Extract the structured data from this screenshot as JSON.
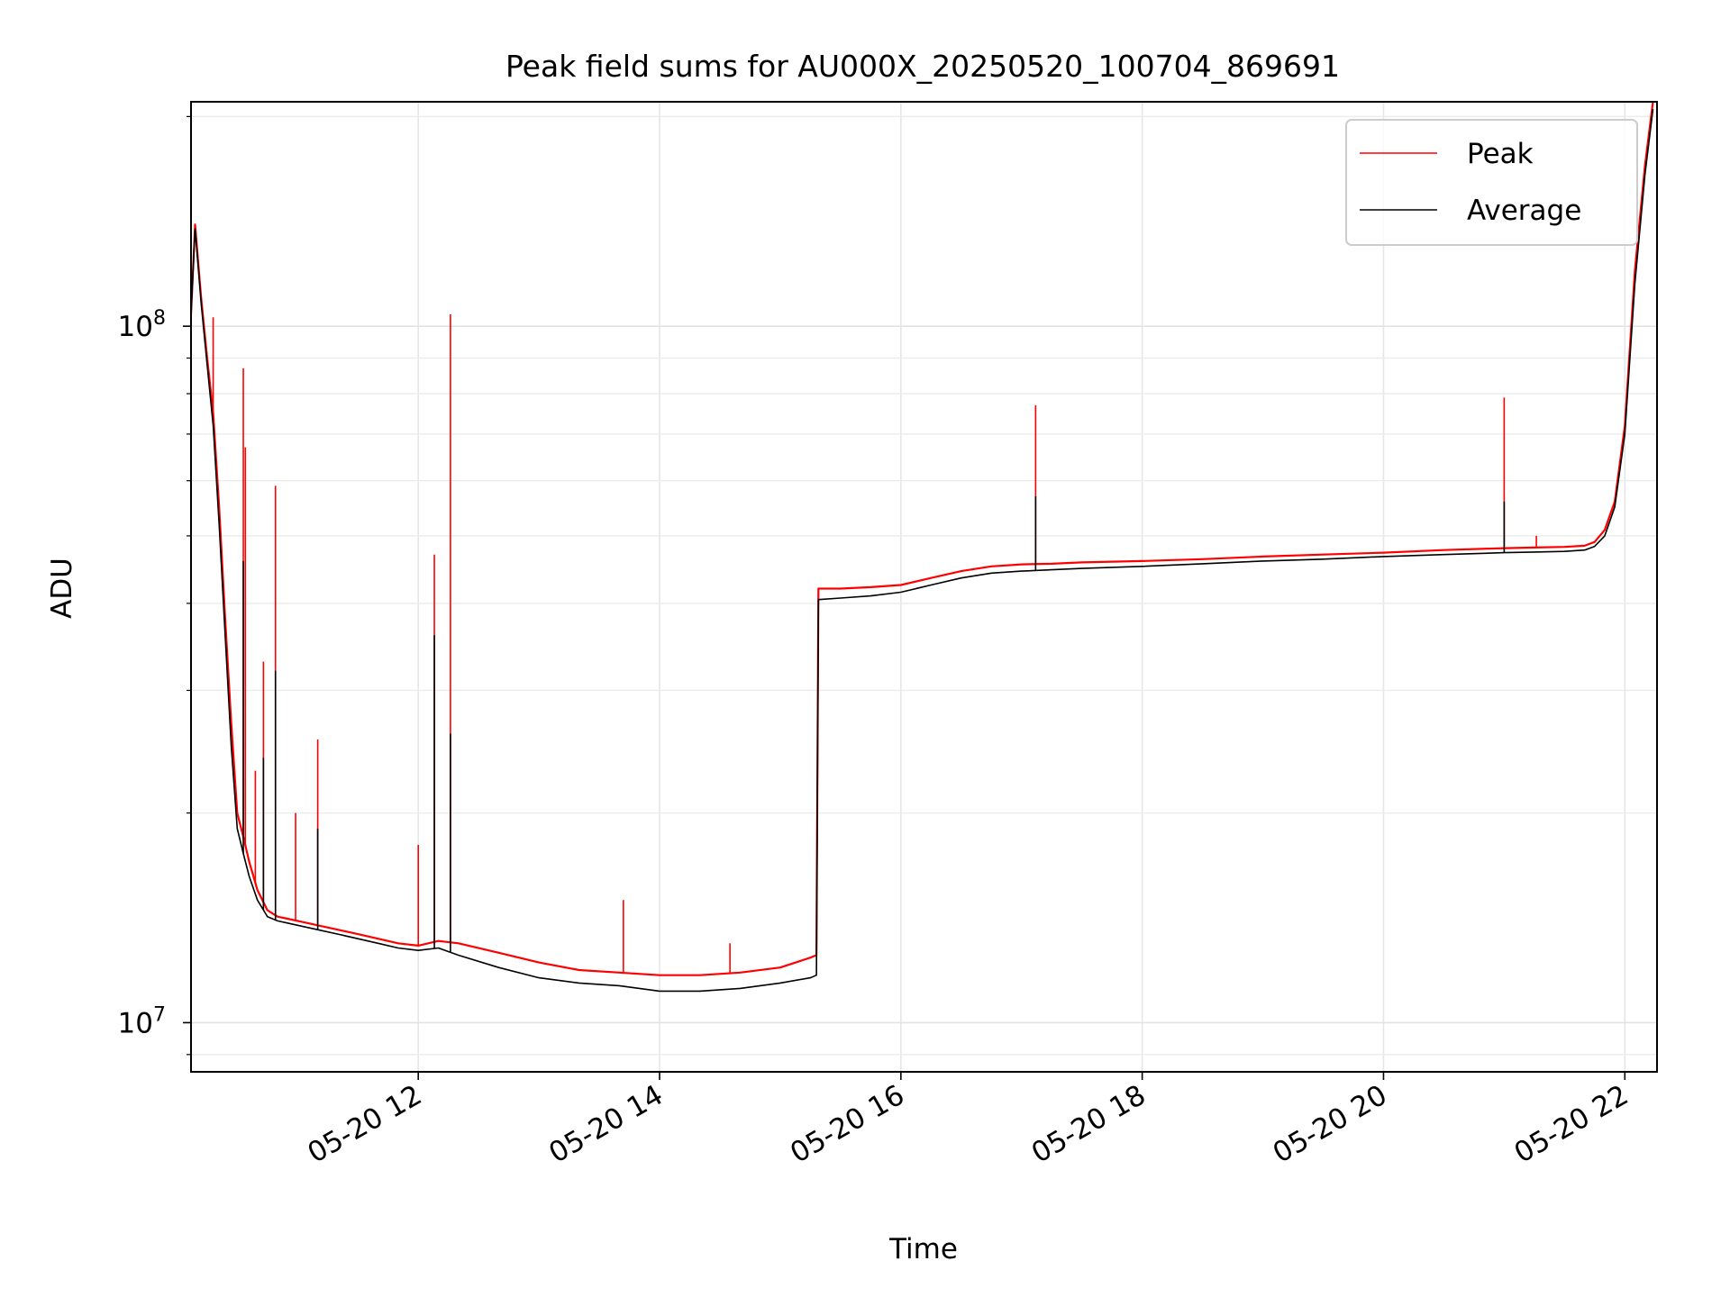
{
  "chart_data": {
    "type": "line",
    "title": "Peak field sums for AU000X_20250520_100704_869691",
    "xlabel": "Time",
    "ylabel": "ADU",
    "yscale": "log",
    "xlim": [
      "2025-05-20 10:07",
      "2025-05-20 22:16"
    ],
    "ylim": [
      8500000,
      210000000
    ],
    "x_ticks": [
      {
        "value": "2025-05-20 12:00",
        "label": "05-20 12"
      },
      {
        "value": "2025-05-20 14:00",
        "label": "05-20 14"
      },
      {
        "value": "2025-05-20 16:00",
        "label": "05-20 16"
      },
      {
        "value": "2025-05-20 18:00",
        "label": "05-20 18"
      },
      {
        "value": "2025-05-20 20:00",
        "label": "05-20 20"
      },
      {
        "value": "2025-05-20 22:00",
        "label": "05-20 22"
      }
    ],
    "y_ticks": [
      {
        "value": 10000000,
        "base": "10",
        "exp": "7"
      },
      {
        "value": 100000000,
        "base": "10",
        "exp": "8"
      }
    ],
    "grid": true,
    "legend": {
      "position": "upper-right"
    },
    "series": [
      {
        "name": "Peak",
        "color": "#ff0000",
        "x": [
          "2025-05-20 10:07",
          "2025-05-20 10:09",
          "2025-05-20 10:12",
          "2025-05-20 10:15",
          "2025-05-20 10:18",
          "2025-05-20 10:21",
          "2025-05-20 10:24",
          "2025-05-20 10:27",
          "2025-05-20 10:30",
          "2025-05-20 10:33",
          "2025-05-20 10:36",
          "2025-05-20 10:40",
          "2025-05-20 10:45",
          "2025-05-20 10:50",
          "2025-05-20 10:55",
          "2025-05-20 11:00",
          "2025-05-20 11:10",
          "2025-05-20 11:20",
          "2025-05-20 11:30",
          "2025-05-20 11:40",
          "2025-05-20 11:50",
          "2025-05-20 12:00",
          "2025-05-20 12:10",
          "2025-05-20 12:20",
          "2025-05-20 12:40",
          "2025-05-20 13:00",
          "2025-05-20 13:20",
          "2025-05-20 13:40",
          "2025-05-20 14:00",
          "2025-05-20 14:20",
          "2025-05-20 14:40",
          "2025-05-20 15:00",
          "2025-05-20 15:15",
          "2025-05-20 15:18",
          "2025-05-20 15:19",
          "2025-05-20 15:30",
          "2025-05-20 15:45",
          "2025-05-20 16:00",
          "2025-05-20 16:15",
          "2025-05-20 16:30",
          "2025-05-20 16:45",
          "2025-05-20 17:00",
          "2025-05-20 17:15",
          "2025-05-20 17:30",
          "2025-05-20 18:00",
          "2025-05-20 18:30",
          "2025-05-20 19:00",
          "2025-05-20 19:30",
          "2025-05-20 20:00",
          "2025-05-20 20:30",
          "2025-05-20 21:00",
          "2025-05-20 21:15",
          "2025-05-20 21:30",
          "2025-05-20 21:40",
          "2025-05-20 21:45",
          "2025-05-20 21:50",
          "2025-05-20 21:55",
          "2025-05-20 22:00",
          "2025-05-20 22:05",
          "2025-05-20 22:10",
          "2025-05-20 22:14"
        ],
        "values": [
          104000000,
          140000000,
          110000000,
          90000000,
          75000000,
          55000000,
          38000000,
          27000000,
          20000000,
          18500000,
          17000000,
          15500000,
          14500000,
          14200000,
          14100000,
          14000000,
          13800000,
          13600000,
          13400000,
          13200000,
          13000000,
          12900000,
          13100000,
          13000000,
          12600000,
          12200000,
          11900000,
          11800000,
          11700000,
          11700000,
          11800000,
          12000000,
          12400000,
          12500000,
          42000000,
          42000000,
          42200000,
          42500000,
          43500000,
          44500000,
          45200000,
          45500000,
          45600000,
          45800000,
          46000000,
          46300000,
          46700000,
          47000000,
          47300000,
          47700000,
          48000000,
          48100000,
          48200000,
          48400000,
          49000000,
          51000000,
          56000000,
          72000000,
          120000000,
          170000000,
          210000000
        ]
      },
      {
        "name": "Average",
        "color": "#000000",
        "x": [
          "2025-05-20 10:07",
          "2025-05-20 10:09",
          "2025-05-20 10:12",
          "2025-05-20 10:15",
          "2025-05-20 10:18",
          "2025-05-20 10:21",
          "2025-05-20 10:24",
          "2025-05-20 10:27",
          "2025-05-20 10:30",
          "2025-05-20 10:33",
          "2025-05-20 10:36",
          "2025-05-20 10:40",
          "2025-05-20 10:45",
          "2025-05-20 10:50",
          "2025-05-20 10:55",
          "2025-05-20 11:00",
          "2025-05-20 11:10",
          "2025-05-20 11:20",
          "2025-05-20 11:30",
          "2025-05-20 11:40",
          "2025-05-20 11:50",
          "2025-05-20 12:00",
          "2025-05-20 12:10",
          "2025-05-20 12:20",
          "2025-05-20 12:40",
          "2025-05-20 13:00",
          "2025-05-20 13:20",
          "2025-05-20 13:40",
          "2025-05-20 14:00",
          "2025-05-20 14:20",
          "2025-05-20 14:40",
          "2025-05-20 15:00",
          "2025-05-20 15:15",
          "2025-05-20 15:18",
          "2025-05-20 15:19",
          "2025-05-20 15:30",
          "2025-05-20 15:45",
          "2025-05-20 16:00",
          "2025-05-20 16:15",
          "2025-05-20 16:30",
          "2025-05-20 16:45",
          "2025-05-20 17:00",
          "2025-05-20 17:15",
          "2025-05-20 17:30",
          "2025-05-20 18:00",
          "2025-05-20 18:30",
          "2025-05-20 19:00",
          "2025-05-20 19:30",
          "2025-05-20 20:00",
          "2025-05-20 20:30",
          "2025-05-20 21:00",
          "2025-05-20 21:15",
          "2025-05-20 21:30",
          "2025-05-20 21:40",
          "2025-05-20 21:45",
          "2025-05-20 21:50",
          "2025-05-20 21:55",
          "2025-05-20 22:00",
          "2025-05-20 22:05",
          "2025-05-20 22:10",
          "2025-05-20 22:14"
        ],
        "values": [
          104000000,
          138000000,
          108000000,
          88000000,
          72000000,
          52000000,
          36000000,
          25000000,
          19000000,
          17500000,
          16200000,
          15000000,
          14200000,
          14000000,
          13900000,
          13800000,
          13600000,
          13400000,
          13200000,
          13000000,
          12800000,
          12700000,
          12800000,
          12500000,
          12000000,
          11600000,
          11400000,
          11300000,
          11100000,
          11100000,
          11200000,
          11400000,
          11600000,
          11700000,
          40500000,
          40700000,
          41000000,
          41500000,
          42500000,
          43500000,
          44200000,
          44500000,
          44700000,
          44900000,
          45200000,
          45600000,
          46000000,
          46300000,
          46700000,
          47000000,
          47300000,
          47400000,
          47500000,
          47700000,
          48300000,
          50000000,
          55000000,
          70000000,
          115000000,
          165000000,
          205000000
        ]
      }
    ],
    "spikes": [
      {
        "name": "Peak",
        "color": "#ff0000",
        "x": [
          "2025-05-20 10:18",
          "2025-05-20 10:33",
          "2025-05-20 10:34",
          "2025-05-20 10:39",
          "2025-05-20 10:43",
          "2025-05-20 10:49",
          "2025-05-20 10:59",
          "2025-05-20 11:10",
          "2025-05-20 12:00",
          "2025-05-20 12:08",
          "2025-05-20 12:16",
          "2025-05-20 13:42",
          "2025-05-20 14:35",
          "2025-05-20 17:07",
          "2025-05-20 21:00",
          "2025-05-20 21:16"
        ],
        "values": [
          103000000,
          87000000,
          67000000,
          23000000,
          33000000,
          59000000,
          20000000,
          25500000,
          18000000,
          47000000,
          104000000,
          15000000,
          13000000,
          77000000,
          79000000,
          50000000
        ]
      },
      {
        "name": "Average",
        "color": "#000000",
        "x": [
          "2025-05-20 10:33",
          "2025-05-20 10:43",
          "2025-05-20 10:49",
          "2025-05-20 11:10",
          "2025-05-20 12:08",
          "2025-05-20 12:16",
          "2025-05-20 17:07",
          "2025-05-20 21:00"
        ],
        "values": [
          46000000,
          24000000,
          32000000,
          19000000,
          36000000,
          26000000,
          57000000,
          56000000
        ]
      }
    ]
  }
}
